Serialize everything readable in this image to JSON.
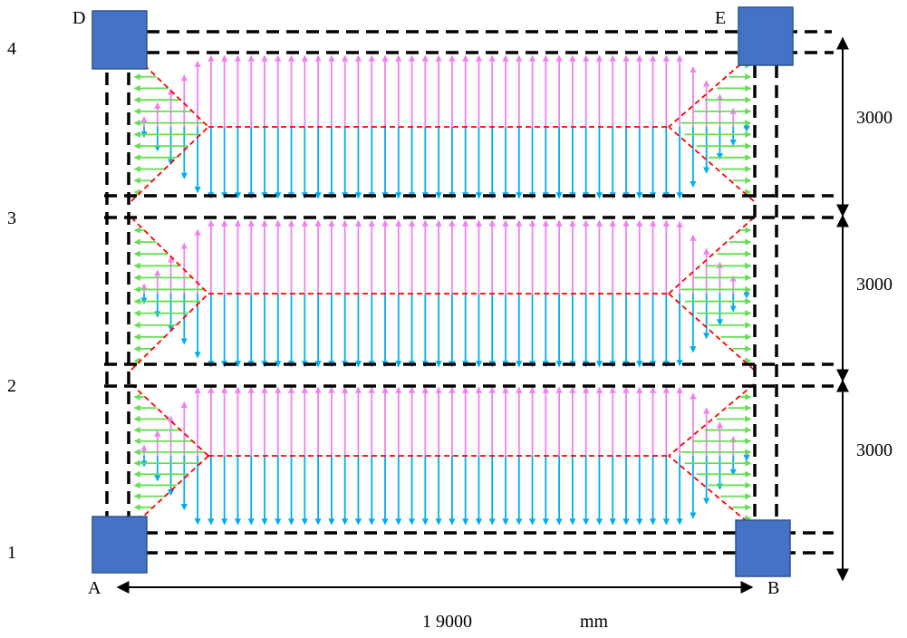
{
  "row_labels": [
    "1",
    "2",
    "3",
    "4"
  ],
  "corner_labels": {
    "A": "A",
    "B": "B",
    "D": "D",
    "E": "E"
  },
  "dimensions": {
    "horizontal_label": "1 9000",
    "horizontal_unit": "mm",
    "vertical_labels": [
      "3000",
      "3000",
      "3000"
    ]
  },
  "panels": {
    "count": 3,
    "arrow_count_per_panel": 46
  },
  "colors": {
    "column_fill": "#4472c4",
    "beam_dash": "#000000",
    "yield_line": "#ff0000",
    "arrow_up": "#ee82ee",
    "arrow_down": "#00aeef",
    "arrow_side": "#66dd55"
  }
}
